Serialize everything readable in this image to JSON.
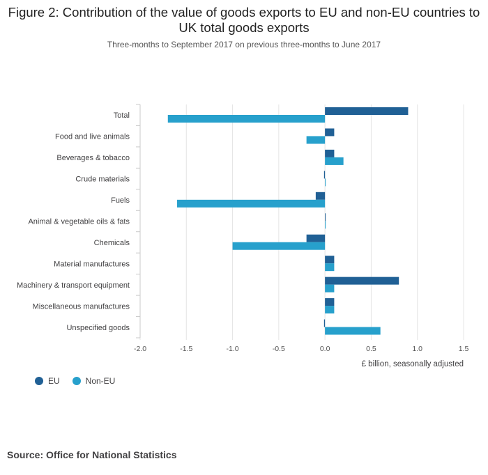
{
  "title": "Figure 2: Contribution of the value of goods exports to EU and non-EU countries to UK total goods exports",
  "subtitle": "Three-months to September 2017 on previous three-months to June 2017",
  "source": "Source: Office for National Statistics",
  "colors": {
    "EU": "#206095",
    "Non-EU": "#27a0cc",
    "grid": "#e4e4e4",
    "axis": "#c9c9c9"
  },
  "chart_data": {
    "type": "bar",
    "orientation": "horizontal",
    "categories": [
      "Total",
      "Food and live animals",
      "Beverages & tobacco",
      "Crude materials",
      "Fuels",
      "Animal & vegetable oils & fats",
      "Chemicals",
      "Material manufactures",
      "Machinery & transport equipment",
      "Miscellaneous manufactures",
      "Unspecified goods"
    ],
    "series": [
      {
        "name": "EU",
        "values": [
          0.9,
          0.1,
          0.1,
          -0.01,
          -0.1,
          0.0,
          -0.2,
          0.1,
          0.8,
          0.1,
          -0.01
        ]
      },
      {
        "name": "Non-EU",
        "values": [
          -1.7,
          -0.2,
          0.2,
          0.0,
          -1.6,
          0.0,
          -1.0,
          0.1,
          0.1,
          0.1,
          0.6
        ]
      }
    ],
    "xlabel": "£ billion, seasonally adjusted",
    "xlim": [
      -2.0,
      1.5
    ],
    "ticks": [
      "-2.0",
      "-1.5",
      "-1.0",
      "-0.5",
      "0.0",
      "0.5",
      "1.0",
      "1.5"
    ],
    "legend": [
      "EU",
      "Non-EU"
    ],
    "legend_position": "bottom-left",
    "grid": true
  }
}
